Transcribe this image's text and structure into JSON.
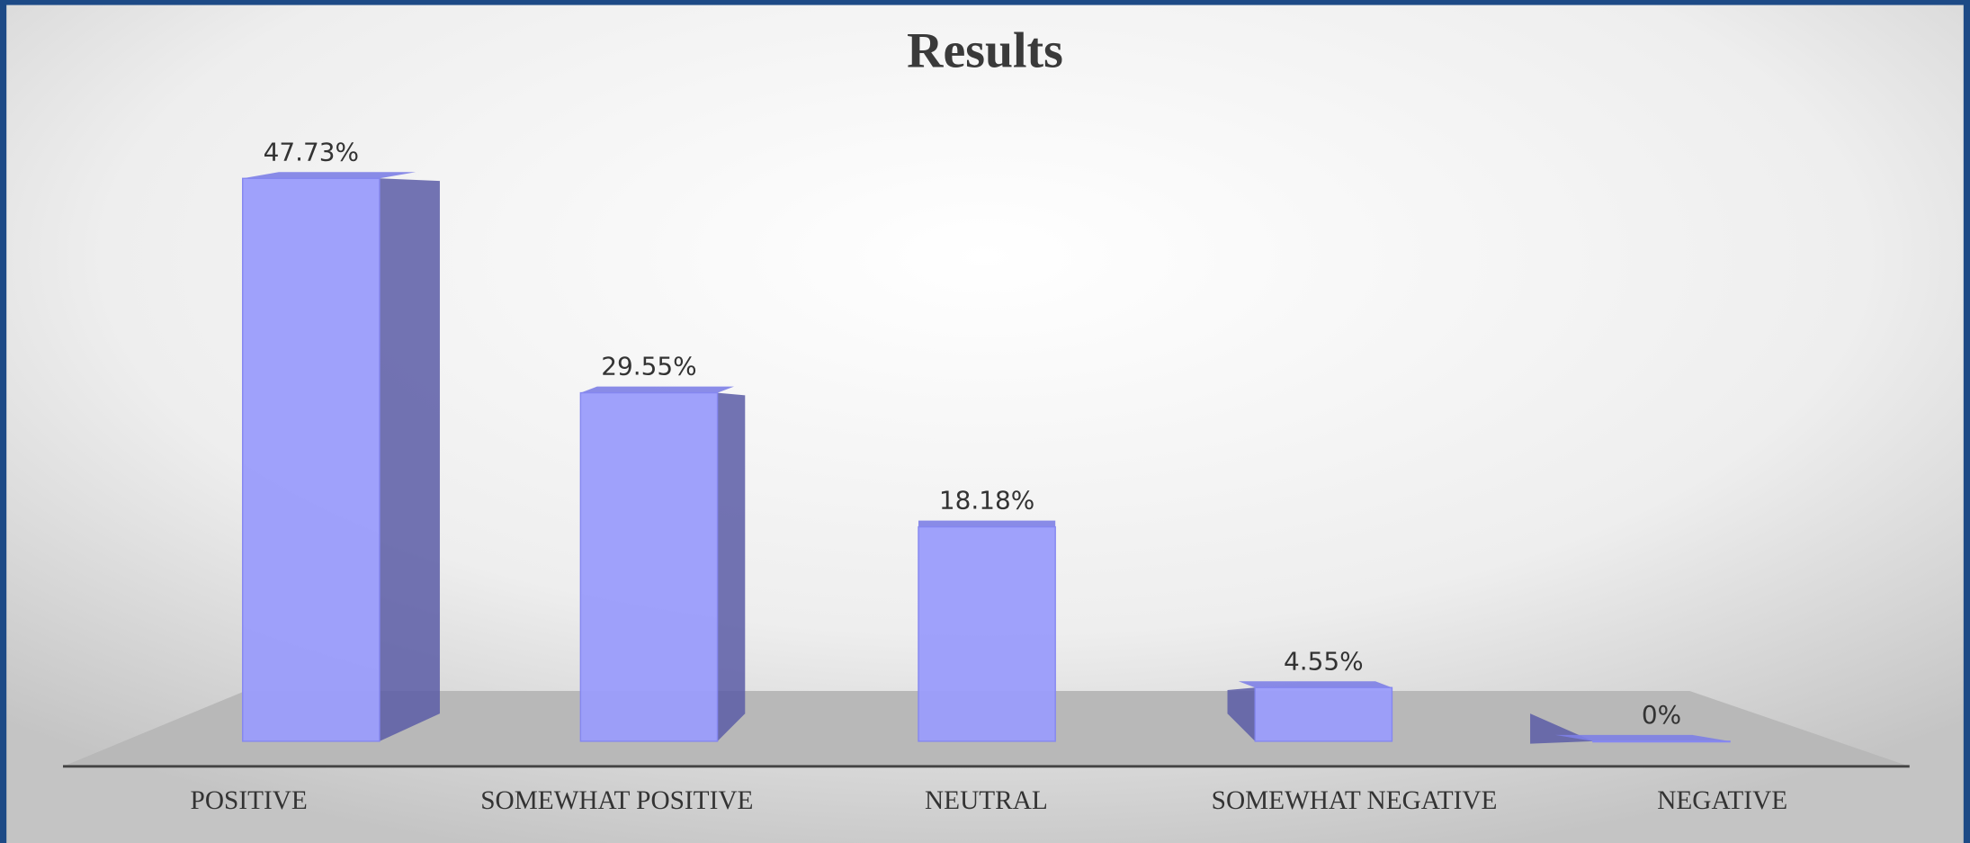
{
  "chart_data": {
    "type": "bar",
    "title": "Results",
    "categories": [
      "POSITIVE",
      "SOMEWHAT POSITIVE",
      "NEUTRAL",
      "SOMEWHAT NEGATIVE",
      "NEGATIVE"
    ],
    "values": [
      47.73,
      29.55,
      18.18,
      4.55,
      0
    ],
    "value_labels": [
      "47.73%",
      "29.55%",
      "18.18%",
      "4.55%",
      "0%"
    ],
    "color": "#9a9cfb"
  }
}
